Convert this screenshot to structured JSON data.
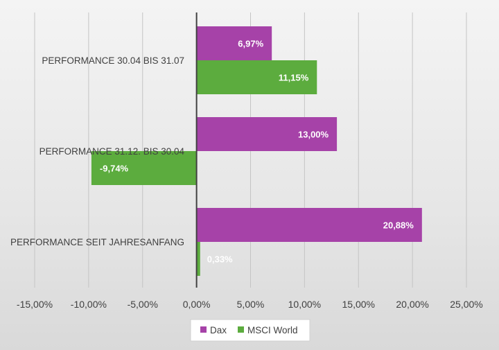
{
  "colors": {
    "dax": "#a642a8",
    "msci": "#5cac3e"
  },
  "chart_data": {
    "type": "bar",
    "orientation": "horizontal",
    "categories": [
      "PERFORMANCE 30.04 BIS 31.07",
      "PERFORMANCE 31.12. BIS 30.04",
      "PERFORMANCE SEIT JAHRESANFANG"
    ],
    "series": [
      {
        "name": "Dax",
        "values": [
          6.97,
          13.0,
          20.88
        ],
        "labels": [
          "6,97%",
          "13,00%",
          "20,88%"
        ]
      },
      {
        "name": "MSCI World",
        "values": [
          11.15,
          -9.74,
          0.33
        ],
        "labels": [
          "11,15%",
          "-9,74%",
          "0,33%"
        ]
      }
    ],
    "xlim": [
      -15,
      25
    ],
    "xticks": [
      -15,
      -10,
      -5,
      0,
      5,
      10,
      15,
      20,
      25
    ],
    "xtick_labels": [
      "-15,00%",
      "-10,00%",
      "-5,00%",
      "0,00%",
      "5,00%",
      "10,00%",
      "15,00%",
      "20,00%",
      "25,00%"
    ],
    "grid": true,
    "legend_position": "bottom"
  }
}
